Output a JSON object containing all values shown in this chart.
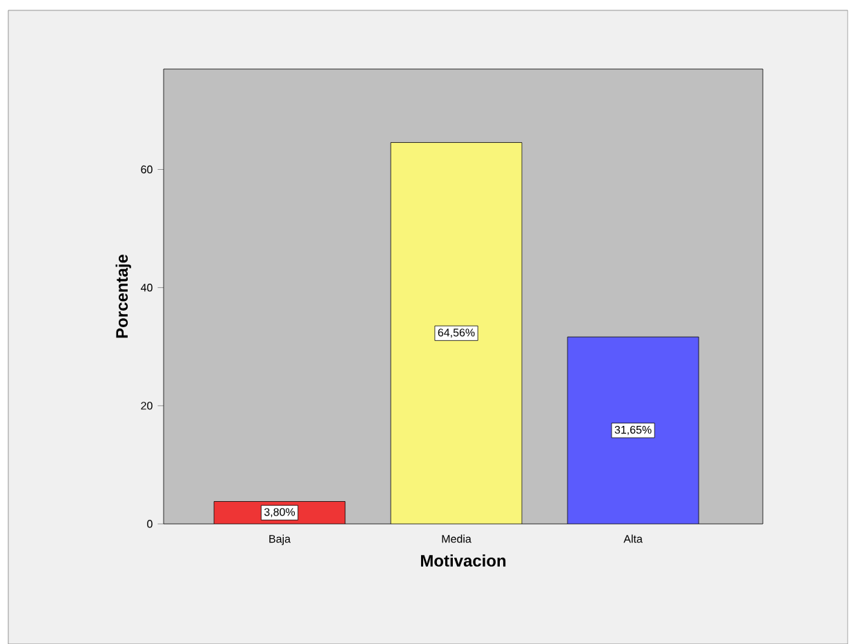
{
  "chart_data": {
    "type": "bar",
    "xlabel": "Motivacion",
    "ylabel": "Porcentaje",
    "categories": [
      "Baja",
      "Media",
      "Alta"
    ],
    "values": [
      3.8,
      64.56,
      31.65
    ],
    "colors": [
      "#ee3535",
      "#f9f57a",
      "#5b5bfd"
    ],
    "value_labels": [
      "3,80%",
      "64,56%",
      "31,65%"
    ],
    "ylim": [
      0,
      77
    ],
    "yticks": [
      0,
      20,
      40,
      60
    ],
    "grid": false
  }
}
